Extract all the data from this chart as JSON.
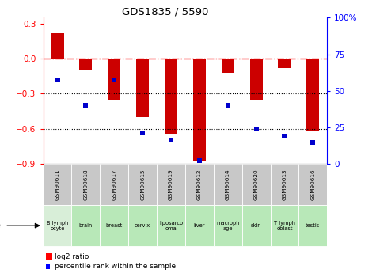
{
  "title": "GDS1835 / 5590",
  "samples": [
    "GSM90611",
    "GSM90618",
    "GSM90617",
    "GSM90615",
    "GSM90619",
    "GSM90612",
    "GSM90614",
    "GSM90620",
    "GSM90613",
    "GSM90616"
  ],
  "cell_types": [
    "B lymph\nocyte",
    "brain",
    "breast",
    "cervix",
    "liposarco\noma",
    "liver",
    "macroph\nage",
    "skin",
    "T lymph\noblast",
    "testis"
  ],
  "log2_ratio": [
    0.22,
    -0.1,
    -0.35,
    -0.5,
    -0.64,
    -0.87,
    -0.12,
    -0.36,
    -0.08,
    -0.62
  ],
  "percentile_rank": [
    60,
    42,
    60,
    22,
    17,
    2,
    42,
    25,
    20,
    15
  ],
  "bar_color": "#cc0000",
  "dot_color": "#0000cc",
  "ylim_left": [
    -0.9,
    0.35
  ],
  "ylim_right": [
    0,
    100
  ],
  "yticks_left": [
    -0.9,
    -0.6,
    -0.3,
    0.0,
    0.3
  ],
  "yticks_right": [
    0,
    25,
    50,
    75,
    100
  ],
  "cell_bg_colors": [
    "#d8eed8",
    "#b8e8b8",
    "#b8e8b8",
    "#b8e8b8",
    "#b8e8b8",
    "#b8e8b8",
    "#b8e8b8",
    "#b8e8b8",
    "#b8e8b8",
    "#b8e8b8"
  ],
  "sample_bg_color": "#c8c8c8",
  "hline_y": 0.0,
  "dotted_lines": [
    -0.3,
    -0.6
  ],
  "bar_width": 0.45
}
